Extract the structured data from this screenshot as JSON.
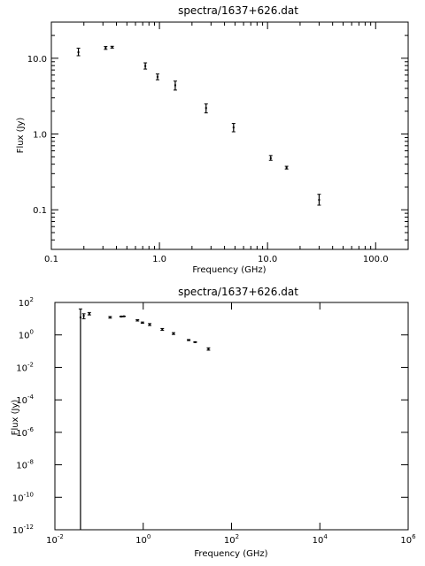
{
  "chart_data": [
    {
      "type": "scatter",
      "title": "spectra/1637+626.dat",
      "xlabel": "Frequency (GHz)",
      "ylabel": "Flux (Jy)",
      "xscale": "log",
      "yscale": "log",
      "xlim": [
        0.1,
        200
      ],
      "ylim": [
        0.03,
        30
      ],
      "xticks": [
        {
          "v": 0.1,
          "label": "0.1"
        },
        {
          "v": 1,
          "label": "1.0"
        },
        {
          "v": 10,
          "label": "10.0"
        },
        {
          "v": 100,
          "label": "100.0"
        }
      ],
      "yticks": [
        {
          "v": 0.1,
          "label": "0.1"
        },
        {
          "v": 1,
          "label": "1.0"
        },
        {
          "v": 10,
          "label": "10.0"
        }
      ],
      "points": [
        {
          "x": 0.178,
          "y": 12.0,
          "lo": 10.8,
          "hi": 13.6
        },
        {
          "x": 0.318,
          "y": 13.7,
          "lo": 13.1,
          "hi": 14.3
        },
        {
          "x": 0.365,
          "y": 14.0,
          "lo": 13.6,
          "hi": 14.4
        },
        {
          "x": 0.74,
          "y": 7.9,
          "lo": 7.2,
          "hi": 8.7
        },
        {
          "x": 0.96,
          "y": 5.7,
          "lo": 5.2,
          "hi": 6.2
        },
        {
          "x": 1.4,
          "y": 4.4,
          "lo": 3.8,
          "hi": 5.0
        },
        {
          "x": 2.7,
          "y": 2.2,
          "lo": 1.9,
          "hi": 2.5
        },
        {
          "x": 4.85,
          "y": 1.22,
          "lo": 1.07,
          "hi": 1.38
        },
        {
          "x": 10.7,
          "y": 0.48,
          "lo": 0.45,
          "hi": 0.52
        },
        {
          "x": 15.0,
          "y": 0.36,
          "lo": 0.345,
          "hi": 0.375
        },
        {
          "x": 30.0,
          "y": 0.135,
          "lo": 0.115,
          "hi": 0.16
        }
      ]
    },
    {
      "type": "scatter",
      "title": "spectra/1637+626.dat",
      "xlabel": "Frequency (GHz)",
      "ylabel": "Flux (Jy)",
      "xscale": "log",
      "yscale": "log",
      "xlim": [
        0.01,
        1000000
      ],
      "ylim": [
        1e-12,
        100
      ],
      "xticks": [
        {
          "v": 0.01,
          "base": "10",
          "exp": "-2"
        },
        {
          "v": 1,
          "base": "10",
          "exp": "0"
        },
        {
          "v": 100,
          "base": "10",
          "exp": "2"
        },
        {
          "v": 10000,
          "base": "10",
          "exp": "4"
        },
        {
          "v": 1000000,
          "base": "10",
          "exp": "6"
        }
      ],
      "yticks": [
        {
          "v": 1e-12,
          "base": "10",
          "exp": "-12"
        },
        {
          "v": 1e-10,
          "base": "10",
          "exp": "-10"
        },
        {
          "v": 1e-08,
          "base": "10",
          "exp": "-8"
        },
        {
          "v": 1e-06,
          "base": "10",
          "exp": "-6"
        },
        {
          "v": 0.0001,
          "base": "10",
          "exp": "-4"
        },
        {
          "v": 0.01,
          "base": "10",
          "exp": "-2"
        },
        {
          "v": 1,
          "base": "10",
          "exp": "0"
        },
        {
          "v": 100,
          "base": "10",
          "exp": "2"
        }
      ],
      "points": [
        {
          "x": 0.038,
          "y": 12.0,
          "lo": 1e-12,
          "hi": 40.0
        },
        {
          "x": 0.045,
          "y": 15.0,
          "lo": 10.0,
          "hi": 20.0
        },
        {
          "x": 0.06,
          "y": 20.0,
          "lo": 17.0,
          "hi": 24.0
        },
        {
          "x": 0.178,
          "y": 12.0,
          "lo": 10.8,
          "hi": 13.6
        },
        {
          "x": 0.318,
          "y": 13.7,
          "lo": 13.1,
          "hi": 14.3
        },
        {
          "x": 0.365,
          "y": 14.0,
          "lo": 13.6,
          "hi": 14.4
        },
        {
          "x": 0.74,
          "y": 7.9,
          "lo": 7.2,
          "hi": 8.7
        },
        {
          "x": 0.96,
          "y": 5.7,
          "lo": 5.2,
          "hi": 6.2
        },
        {
          "x": 1.4,
          "y": 4.4,
          "lo": 3.8,
          "hi": 5.0
        },
        {
          "x": 2.7,
          "y": 2.2,
          "lo": 1.9,
          "hi": 2.5
        },
        {
          "x": 4.85,
          "y": 1.22,
          "lo": 1.07,
          "hi": 1.38
        },
        {
          "x": 10.7,
          "y": 0.48,
          "lo": 0.45,
          "hi": 0.52
        },
        {
          "x": 15.0,
          "y": 0.36,
          "lo": 0.345,
          "hi": 0.375
        },
        {
          "x": 30.0,
          "y": 0.135,
          "lo": 0.115,
          "hi": 0.16
        }
      ]
    }
  ]
}
